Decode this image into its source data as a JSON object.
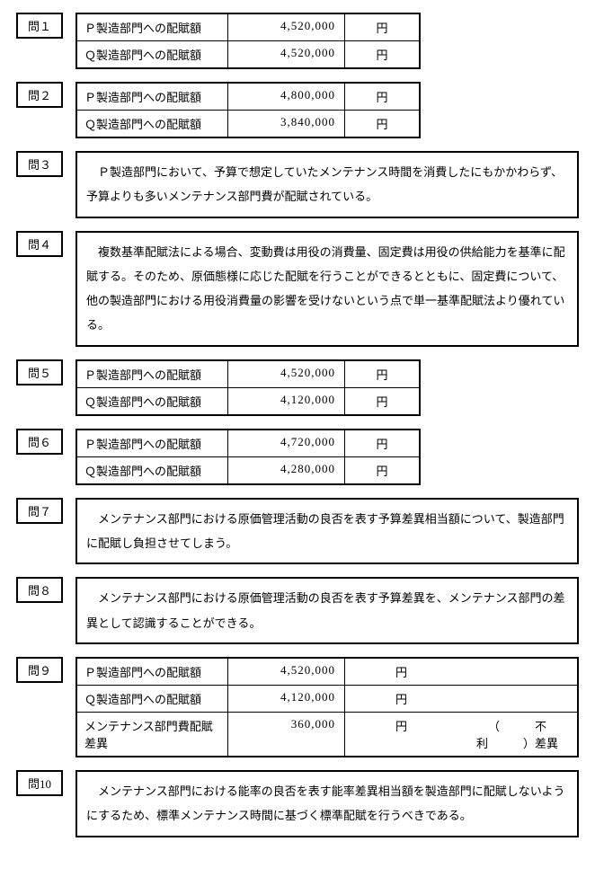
{
  "unit": "円",
  "questions": [
    {
      "id": "問１",
      "type": "table",
      "width": "narrow",
      "rows": [
        {
          "label": "Ｐ製造部門への配賦額",
          "value": "4,520,000",
          "unit": "円"
        },
        {
          "label": "Ｑ製造部門への配賦額",
          "value": "4,520,000",
          "unit": "円"
        }
      ]
    },
    {
      "id": "問２",
      "type": "table",
      "width": "narrow",
      "rows": [
        {
          "label": "Ｐ製造部門への配賦額",
          "value": "4,800,000",
          "unit": "円"
        },
        {
          "label": "Ｑ製造部門への配賦額",
          "value": "3,840,000",
          "unit": "円"
        }
      ]
    },
    {
      "id": "問３",
      "type": "text",
      "text": "Ｐ製造部門において、予算で想定していたメンテナンス時間を消費したにもかかわらず、予算よりも多いメンテナンス部門費が配賦されている。"
    },
    {
      "id": "問４",
      "type": "text",
      "text": "複数基準配賦法による場合、変動費は用役の消費量、固定費は用役の供給能力を基準に配賦する。そのため、原価態様に応じた配賦を行うことができるとともに、固定費について、他の製造部門における用役消費量の影響を受けないという点で単一基準配賦法より優れている。"
    },
    {
      "id": "問５",
      "type": "table",
      "width": "narrow",
      "rows": [
        {
          "label": "Ｐ製造部門への配賦額",
          "value": "4,520,000",
          "unit": "円"
        },
        {
          "label": "Ｑ製造部門への配賦額",
          "value": "4,120,000",
          "unit": "円"
        }
      ]
    },
    {
      "id": "問６",
      "type": "table",
      "width": "narrow",
      "rows": [
        {
          "label": "Ｐ製造部門への配賦額",
          "value": "4,720,000",
          "unit": "円"
        },
        {
          "label": "Ｑ製造部門への配賦額",
          "value": "4,280,000",
          "unit": "円"
        }
      ]
    },
    {
      "id": "問７",
      "type": "text",
      "text": "メンテナンス部門における原価管理活動の良否を表す予算差異相当額について、製造部門に配賦し負担させてしまう。"
    },
    {
      "id": "問８",
      "type": "text",
      "text": "メンテナンス部門における原価管理活動の良否を表す予算差異を、メンテナンス部門の差異として認識することができる。"
    },
    {
      "id": "問９",
      "type": "table-extra",
      "width": "wide",
      "rows": [
        {
          "label": "Ｐ製造部門への配賦額",
          "value": "4,520,000",
          "unit": "円",
          "extra": ""
        },
        {
          "label": "Ｑ製造部門への配賦額",
          "value": "4,120,000",
          "unit": "円",
          "extra": ""
        },
        {
          "label": "メンテナンス部門費配賦差異",
          "value": "360,000",
          "unit": "円",
          "extra": "（　　　不利　　　）差異"
        }
      ]
    },
    {
      "id": "問10",
      "type": "text",
      "text": "メンテナンス部門における能率の良否を表す能率差異相当額を製造部門に配賦しないようにするため、標準メンテナンス時間に基づく標準配賦を行うべきである。"
    }
  ]
}
